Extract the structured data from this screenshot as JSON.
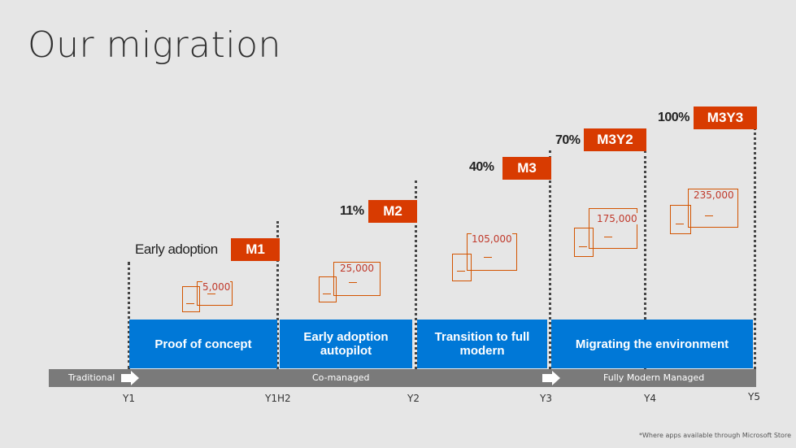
{
  "title": "Our migration",
  "milestones": {
    "m1": {
      "pct": "Early adoption",
      "tag": "M1"
    },
    "m2": {
      "pct": "11%",
      "tag": "M2"
    },
    "m3": {
      "pct": "40%",
      "tag": "M3"
    },
    "m3y2": {
      "pct": "70%",
      "tag": "M3Y2"
    },
    "m3y3": {
      "pct": "100%",
      "tag": "M3Y3"
    }
  },
  "device_counts": {
    "c1": "5,000",
    "c2": "25,000",
    "c3": "105,000",
    "c4": "175,000",
    "c5": "235,000"
  },
  "phases": {
    "p1": "Proof of concept",
    "p2": "Early adoption autopilot",
    "p3": "Transition to full modern",
    "p4": "Migrating the environment"
  },
  "track": {
    "traditional": "Traditional",
    "comanaged": "Co-managed",
    "fully_modern": "Fully Modern Managed"
  },
  "years": {
    "y1": "Y1",
    "y1h2": "Y1H2",
    "y2": "Y2",
    "y3": "Y3",
    "y4": "Y4",
    "y5": "Y5"
  },
  "footnote": "*Where apps available through Microsoft Store",
  "colors": {
    "accent_orange": "#d83b01",
    "phase_blue": "#0078d7",
    "track_gray": "#7a7a7a",
    "background": "#e6e6e6"
  }
}
